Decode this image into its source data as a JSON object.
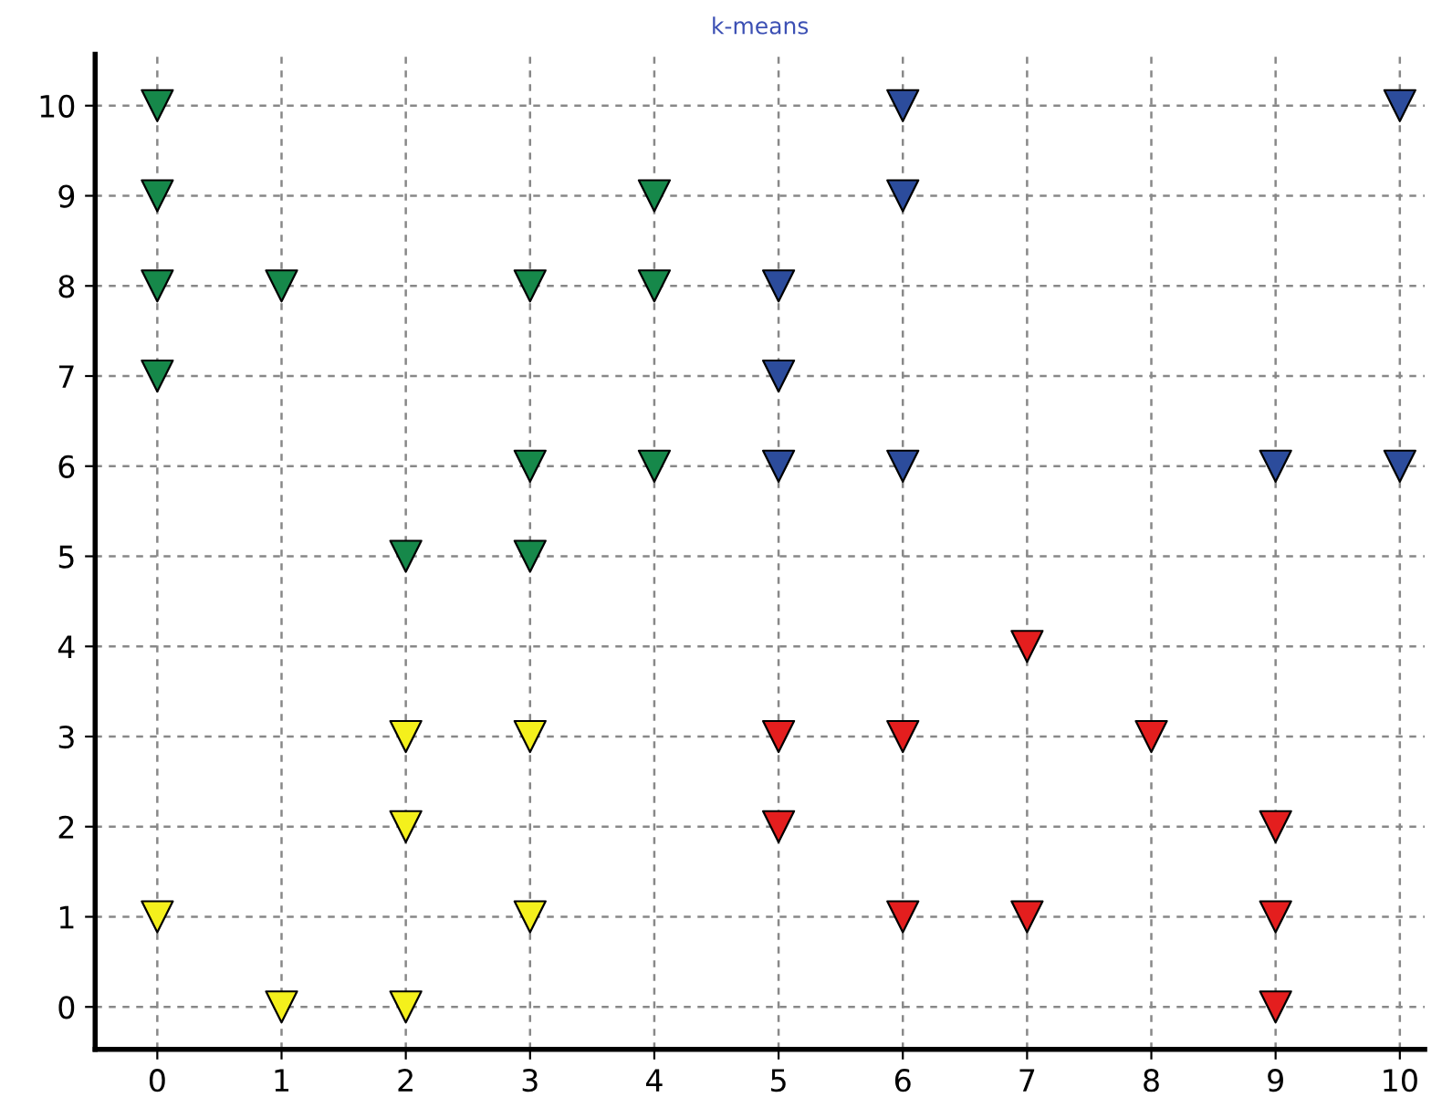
{
  "chart_data": {
    "type": "scatter",
    "title": "k-means",
    "xlim": [
      -0.5,
      10.2
    ],
    "ylim": [
      -0.47,
      10.57
    ],
    "xticks": [
      0,
      1,
      2,
      3,
      4,
      5,
      6,
      7,
      8,
      9,
      10
    ],
    "yticks": [
      0,
      1,
      2,
      3,
      4,
      5,
      6,
      7,
      8,
      9,
      10
    ],
    "grid": true,
    "marker": "triangle",
    "legend": false,
    "series": [
      {
        "color": "#16884a",
        "x": [
          0,
          0,
          0,
          0,
          1,
          3,
          4,
          4,
          3,
          4,
          2,
          3
        ],
        "values": [
          10,
          9,
          8,
          7,
          8,
          8,
          9,
          8,
          6,
          6,
          5,
          5
        ]
      },
      {
        "color": "#2c4c9c",
        "x": [
          6,
          10,
          6,
          5,
          5,
          5,
          6,
          9,
          10
        ],
        "values": [
          10,
          10,
          9,
          8,
          7,
          6,
          6,
          6,
          6
        ]
      },
      {
        "color": "#e41e1e",
        "x": [
          7,
          5,
          6,
          8,
          5,
          9,
          6,
          7,
          9,
          9
        ],
        "values": [
          4,
          3,
          3,
          3,
          2,
          2,
          1,
          1,
          1,
          0
        ]
      },
      {
        "color": "#f4f01c",
        "x": [
          0,
          1,
          2,
          2,
          3,
          2,
          3
        ],
        "values": [
          1,
          0,
          0,
          3,
          3,
          2,
          1
        ]
      }
    ]
  }
}
